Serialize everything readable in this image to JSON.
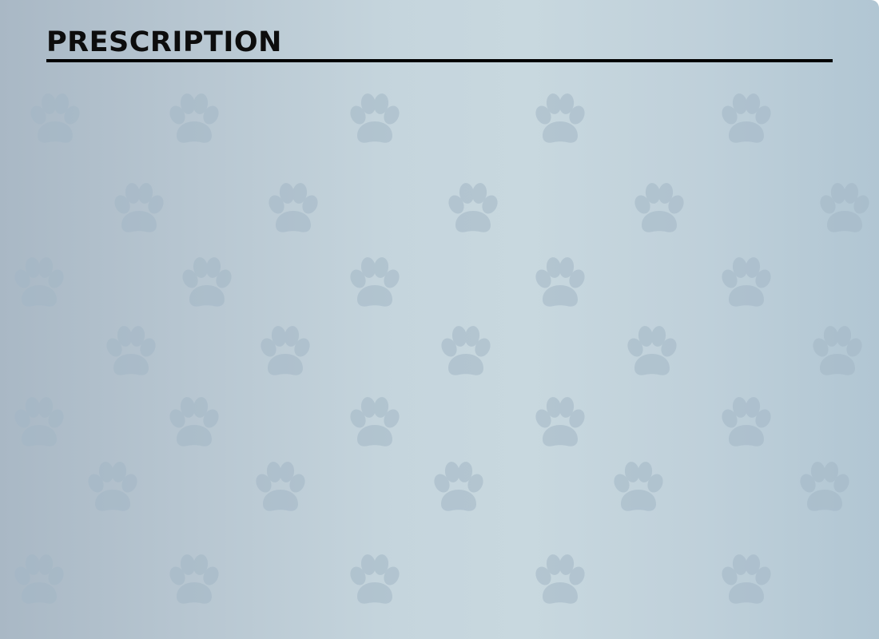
{
  "header": {
    "title": "PRESCRIPTION"
  },
  "background": {
    "pattern_icon": "paw-print-icon",
    "colors": {
      "gradient_start": "#a9b8c5",
      "gradient_mid": "#c8d8df",
      "gradient_end": "#b1c6d3",
      "paw": "#a3b7c6",
      "title_text": "#0d0d0d",
      "rule": "#000000"
    }
  }
}
